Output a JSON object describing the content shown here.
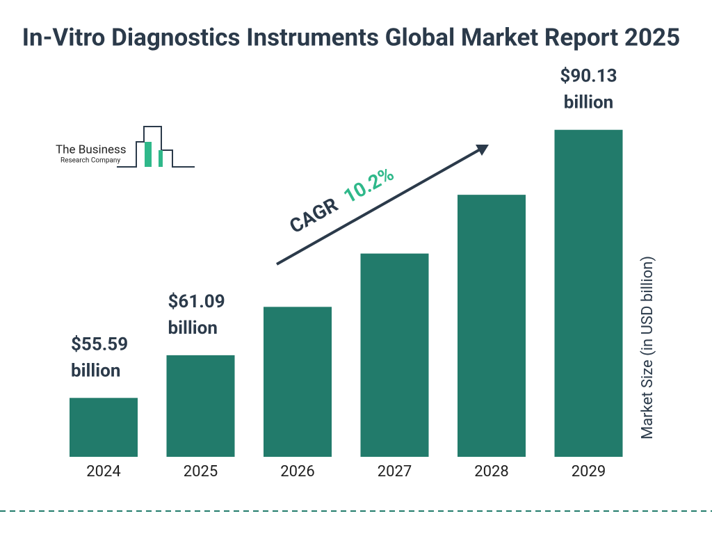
{
  "chart_data": {
    "type": "bar",
    "title": "In-Vitro Diagnostics Instruments Global Market Report 2025",
    "categories": [
      "2024",
      "2025",
      "2026",
      "2027",
      "2028",
      "2029"
    ],
    "values": [
      55.59,
      61.09,
      67.32,
      74.19,
      81.76,
      90.13
    ],
    "value_labels": [
      "$55.59 billion",
      "$61.09 billion",
      null,
      null,
      null,
      "$90.13 billion"
    ],
    "color": "#227b6b",
    "ylim": [
      48,
      91
    ],
    "y_axis_label": "Market Size (in USD billion)",
    "cagr_label": "CAGR",
    "cagr_value": "10.2%",
    "logo_line1": "The Business",
    "logo_line2": "Research Company"
  }
}
